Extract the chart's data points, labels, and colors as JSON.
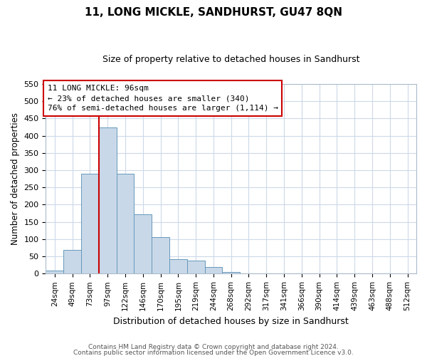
{
  "title": "11, LONG MICKLE, SANDHURST, GU47 8QN",
  "subtitle": "Size of property relative to detached houses in Sandhurst",
  "xlabel": "Distribution of detached houses by size in Sandhurst",
  "ylabel": "Number of detached properties",
  "bar_labels": [
    "24sqm",
    "49sqm",
    "73sqm",
    "97sqm",
    "122sqm",
    "146sqm",
    "170sqm",
    "195sqm",
    "219sqm",
    "244sqm",
    "268sqm",
    "292sqm",
    "317sqm",
    "341sqm",
    "366sqm",
    "390sqm",
    "414sqm",
    "439sqm",
    "463sqm",
    "488sqm",
    "512sqm"
  ],
  "bar_heights": [
    8,
    68,
    290,
    425,
    290,
    172,
    105,
    43,
    38,
    19,
    5,
    1,
    1,
    0,
    0,
    1,
    0,
    0,
    0,
    0,
    1
  ],
  "bar_color": "#c8d8e8",
  "bar_edge_color": "#6699bb",
  "property_line_idx": 3,
  "annotation_text_line1": "11 LONG MICKLE: 96sqm",
  "annotation_text_line2": "← 23% of detached houses are smaller (340)",
  "annotation_text_line3": "76% of semi-detached houses are larger (1,114) →",
  "annotation_box_color": "#ffffff",
  "annotation_box_edge": "#cc0000",
  "ylim": [
    0,
    550
  ],
  "yticks": [
    0,
    50,
    100,
    150,
    200,
    250,
    300,
    350,
    400,
    450,
    500,
    550
  ],
  "line_color": "#cc0000",
  "background_color": "#ffffff",
  "grid_color": "#ccd9e8",
  "footer_line1": "Contains HM Land Registry data © Crown copyright and database right 2024.",
  "footer_line2": "Contains public sector information licensed under the Open Government Licence v3.0."
}
